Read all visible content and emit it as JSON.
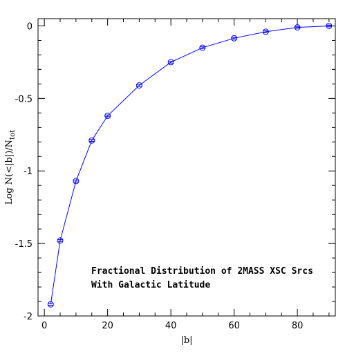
{
  "chart_data": {
    "type": "line",
    "title": "",
    "xlabel": "|b|",
    "ylabel": "Log N(<|b|)/N",
    "ylabel_subscript": "tot",
    "xlim": [
      -2,
      92
    ],
    "ylim": [
      -2,
      0.05
    ],
    "x_ticks": [
      0,
      20,
      40,
      60,
      80
    ],
    "y_ticks": [
      0,
      -0.5,
      -1,
      -1.5,
      -2
    ],
    "x_tick_labels": [
      "0",
      "20",
      "40",
      "60",
      "80"
    ],
    "y_tick_labels": [
      "0",
      "-0.5",
      "-1",
      "-1.5",
      "-2"
    ],
    "grid": false,
    "series": [
      {
        "color": "#0000ff",
        "marker": "circle-crossed",
        "x": [
          2,
          5,
          10,
          15,
          20,
          30,
          40,
          50,
          60,
          70,
          80,
          90
        ],
        "y": [
          -1.92,
          -1.48,
          -1.07,
          -0.79,
          -0.62,
          -0.41,
          -0.25,
          -0.15,
          -0.085,
          -0.04,
          -0.01,
          0.0
        ]
      }
    ],
    "annotations": [
      "Fractional Distribution of 2MASS XSC Srcs",
      "With Galactic Latitude"
    ]
  }
}
